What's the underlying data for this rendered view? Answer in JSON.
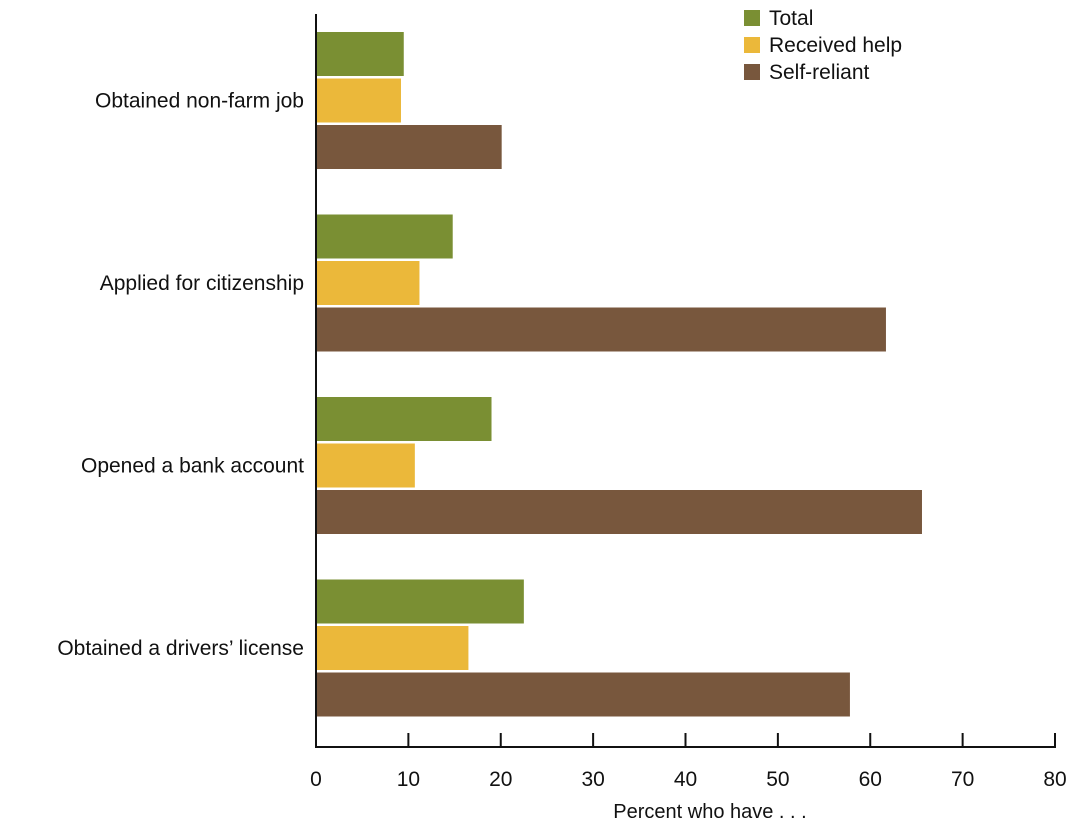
{
  "chart_data": {
    "type": "bar",
    "orientation": "horizontal",
    "categories": [
      "Obtained non-farm job",
      "Applied for citizenship",
      "Opened a bank account",
      "Obtained a drivers’ license"
    ],
    "series": [
      {
        "name": "Total",
        "color": "#7a8f33",
        "values": [
          9.5,
          14.8,
          19.0,
          22.5
        ]
      },
      {
        "name": "Received help",
        "color": "#ebb83a",
        "values": [
          9.2,
          11.2,
          10.7,
          16.5
        ]
      },
      {
        "name": "Self-reliant",
        "color": "#78573d",
        "values": [
          20.1,
          61.7,
          65.6,
          57.8
        ]
      }
    ],
    "xlabel": "Percent who have . . .",
    "xlim": [
      0,
      80
    ],
    "xticks": [
      0,
      10,
      20,
      30,
      40,
      50,
      60,
      70,
      80
    ],
    "grid": false,
    "legend_position": "top-right"
  }
}
